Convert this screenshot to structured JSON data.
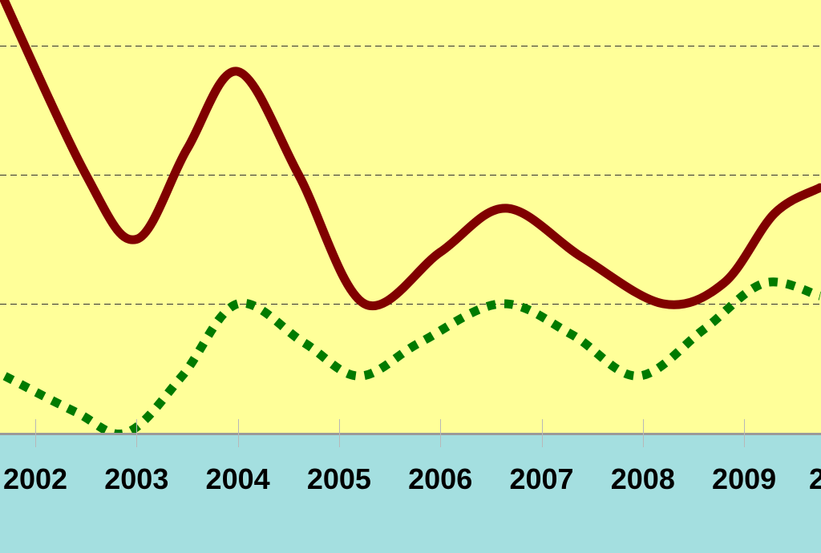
{
  "chart_data": {
    "type": "line",
    "colors": {
      "plot_background": "#ffff99",
      "axis_band": "#a4dfe0",
      "gridline": "#333333",
      "axis_line": "#9a9a9a",
      "series_solid": "#800000",
      "series_dotted": "#007a00",
      "tick_text": "#000000"
    },
    "x_tick_labels": [
      "2002",
      "2003",
      "2004",
      "2005",
      "2006",
      "2007",
      "2008",
      "2009",
      "2"
    ],
    "grid": {
      "horizontal": true,
      "style": "dashed"
    },
    "series": [
      {
        "line_style": "solid",
        "x": [
          2001.55,
          2002.5,
          2003.0,
          2003.5,
          2004.0,
          2004.6,
          2005.25,
          2006.0,
          2006.65,
          2007.4,
          2008.2,
          2008.8,
          2009.3,
          2009.75
        ],
        "y": [
          230,
          150,
          125,
          160,
          190,
          150,
          100,
          120,
          137,
          118,
          100,
          108,
          135,
          145
        ]
      },
      {
        "line_style": "dotted",
        "x": [
          2001.7,
          2002.4,
          2002.9,
          2003.45,
          2004.0,
          2004.65,
          2005.2,
          2005.8,
          2006.6,
          2007.3,
          2007.95,
          2008.6,
          2009.2,
          2009.75
        ],
        "y": [
          72,
          58,
          50,
          72,
          100,
          85,
          72,
          85,
          100,
          88,
          72,
          90,
          108,
          103
        ]
      }
    ]
  }
}
